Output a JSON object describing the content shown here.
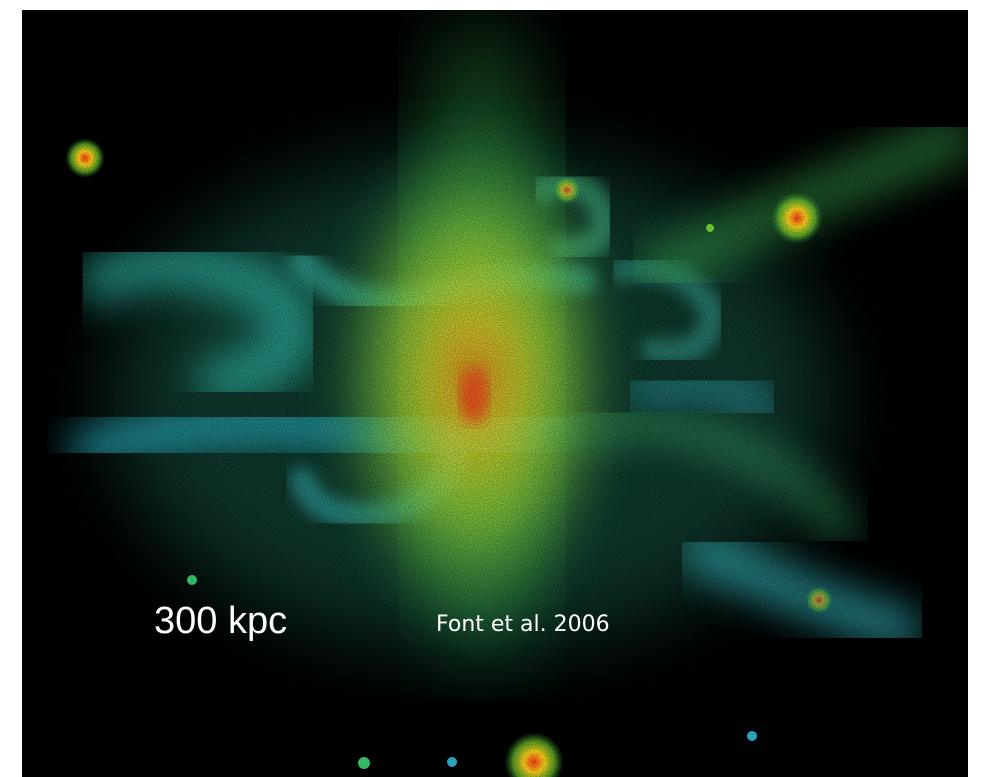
{
  "labels": {
    "scale": "300 kpc",
    "credit": "Font et al. 2006"
  }
}
